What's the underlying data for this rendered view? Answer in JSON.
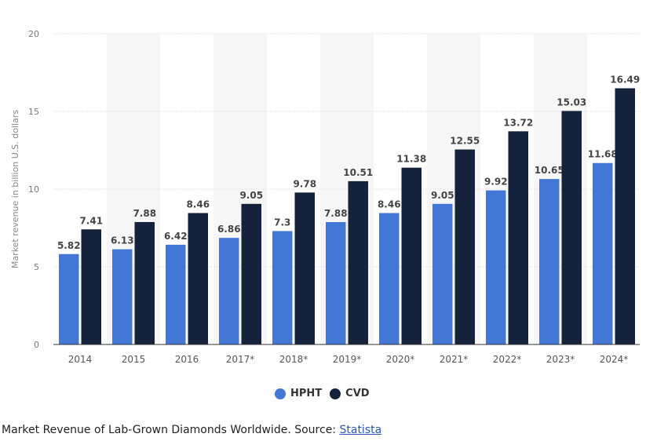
{
  "chart_data": {
    "type": "bar",
    "categories": [
      "2014",
      "2015",
      "2016",
      "2017*",
      "2018*",
      "2019*",
      "2020*",
      "2021*",
      "2022*",
      "2023*",
      "2024*"
    ],
    "series": [
      {
        "name": "HPHT",
        "color": "#4277d6",
        "values": [
          5.82,
          6.13,
          6.42,
          6.86,
          7.3,
          7.88,
          8.46,
          9.05,
          9.92,
          10.65,
          11.68
        ]
      },
      {
        "name": "CVD",
        "color": "#14233b",
        "values": [
          7.41,
          7.88,
          8.46,
          9.05,
          9.78,
          10.51,
          11.38,
          12.55,
          13.72,
          15.03,
          16.49
        ]
      }
    ],
    "ylabel": "Market revenue in billion U.S. dollars",
    "ylim": [
      0,
      20
    ],
    "yticks": [
      0,
      5,
      10,
      15,
      20
    ],
    "grid": true,
    "legend": "bottom-center",
    "data_labels": true
  },
  "caption": {
    "text": "Market Revenue of Lab-Grown Diamonds Worldwide. Source: ",
    "link": "Statista"
  }
}
